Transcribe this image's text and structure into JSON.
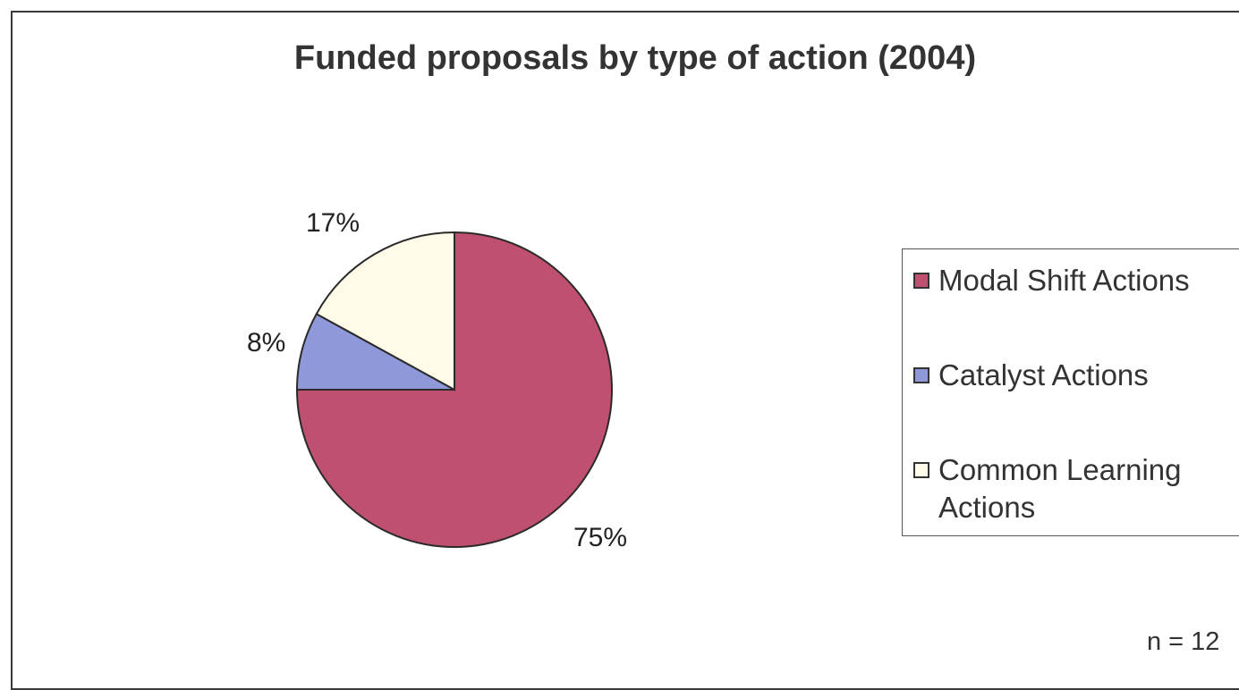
{
  "chart_data": {
    "type": "pie",
    "title": "Funded proposals by type of action (2004)",
    "slices": [
      {
        "name": "Modal Shift Actions",
        "value": 75,
        "label": "75%",
        "color": "#c0506f"
      },
      {
        "name": "Catalyst Actions",
        "value": 8,
        "label": "8%",
        "color": "#8f98d8"
      },
      {
        "name": "Common Learning Actions",
        "value": 17,
        "label": "17%",
        "color": "#fffbe8"
      }
    ],
    "legend_position": "right",
    "note": "n = 12"
  }
}
